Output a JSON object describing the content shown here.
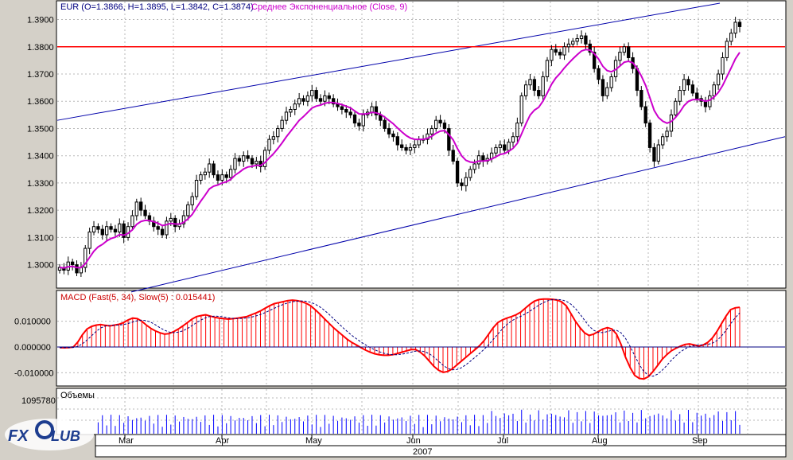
{
  "chart_data": [
    {
      "type": "candlestick",
      "title": "EUR (O=1.3866, H=1.3895, L=1.3842, C=1.3874)",
      "indicator_label": "Среднее Экспоненциальное (Close, 9)",
      "ylim": [
        1.292,
        1.396
      ],
      "y_ticks": [
        "1.3000",
        "1.3100",
        "1.3200",
        "1.3300",
        "1.3400",
        "1.3500",
        "1.3600",
        "1.3700",
        "1.3800",
        "1.3900"
      ],
      "resistance_level": 1.38,
      "channel_upper": {
        "start": 1.353,
        "end": 1.396
      },
      "channel_lower": {
        "start": 1.29,
        "end": 1.347
      },
      "closes": [
        1.299,
        1.298,
        1.301,
        1.3,
        1.297,
        1.299,
        1.306,
        1.312,
        1.314,
        1.313,
        1.311,
        1.314,
        1.313,
        1.312,
        1.315,
        1.31,
        1.314,
        1.318,
        1.323,
        1.32,
        1.318,
        1.316,
        1.314,
        1.313,
        1.311,
        1.316,
        1.317,
        1.314,
        1.315,
        1.318,
        1.322,
        1.325,
        1.331,
        1.333,
        1.334,
        1.337,
        1.333,
        1.331,
        1.333,
        1.332,
        1.335,
        1.339,
        1.338,
        1.34,
        1.339,
        1.337,
        1.338,
        1.336,
        1.342,
        1.346,
        1.347,
        1.35,
        1.353,
        1.356,
        1.357,
        1.359,
        1.361,
        1.36,
        1.362,
        1.364,
        1.361,
        1.36,
        1.362,
        1.361,
        1.359,
        1.358,
        1.357,
        1.356,
        1.355,
        1.352,
        1.351,
        1.355,
        1.356,
        1.358,
        1.355,
        1.353,
        1.35,
        1.348,
        1.347,
        1.344,
        1.343,
        1.342,
        1.343,
        1.344,
        1.346,
        1.346,
        1.348,
        1.35,
        1.353,
        1.352,
        1.35,
        1.342,
        1.338,
        1.33,
        1.329,
        1.332,
        1.335,
        1.337,
        1.34,
        1.338,
        1.339,
        1.341,
        1.343,
        1.344,
        1.342,
        1.345,
        1.347,
        1.352,
        1.362,
        1.366,
        1.368,
        1.364,
        1.362,
        1.369,
        1.375,
        1.379,
        1.378,
        1.377,
        1.38,
        1.381,
        1.382,
        1.383,
        1.384,
        1.381,
        1.378,
        1.372,
        1.368,
        1.362,
        1.365,
        1.369,
        1.375,
        1.378,
        1.38,
        1.376,
        1.372,
        1.364,
        1.358,
        1.352,
        1.343,
        1.338,
        1.344,
        1.347,
        1.349,
        1.355,
        1.36,
        1.364,
        1.368,
        1.366,
        1.363,
        1.361,
        1.36,
        1.358,
        1.362,
        1.366,
        1.37,
        1.376,
        1.382,
        1.385,
        1.389,
        1.3874
      ]
    },
    {
      "type": "histogram",
      "title": "MACD (Fast(5, 34), Slow(5) : 0.015441)",
      "ylim": [
        -0.0145,
        0.021
      ],
      "y_ticks": [
        "0.010000",
        "0.000000",
        "-0.010000"
      ],
      "histogram": [
        -0.0002,
        -0.0003,
        -0.0002,
        0.0,
        0.002,
        0.0048,
        0.007,
        0.008,
        0.0085,
        0.0087,
        0.0084,
        0.0082,
        0.0085,
        0.0088,
        0.0095,
        0.0105,
        0.0112,
        0.011,
        0.01,
        0.0085,
        0.0072,
        0.0062,
        0.0055,
        0.005,
        0.0052,
        0.006,
        0.007,
        0.0082,
        0.0095,
        0.0108,
        0.0118,
        0.0122,
        0.0125,
        0.012,
        0.0115,
        0.0112,
        0.011,
        0.0108,
        0.011,
        0.0112,
        0.0115,
        0.0118,
        0.0125,
        0.0132,
        0.014,
        0.015,
        0.016,
        0.0168,
        0.0172,
        0.0176,
        0.018,
        0.0182,
        0.018,
        0.0176,
        0.017,
        0.016,
        0.0145,
        0.0128,
        0.011,
        0.0092,
        0.0075,
        0.006,
        0.0045,
        0.003,
        0.0018,
        0.0008,
        -0.0002,
        -0.0012,
        -0.002,
        -0.0026,
        -0.003,
        -0.0032,
        -0.0032,
        -0.003,
        -0.0025,
        -0.002,
        -0.0015,
        -0.001,
        -0.001,
        -0.002,
        -0.0035,
        -0.0055,
        -0.0075,
        -0.009,
        -0.0098,
        -0.0095,
        -0.0085,
        -0.007,
        -0.0055,
        -0.004,
        -0.0025,
        -0.001,
        0.0005,
        0.0025,
        0.005,
        0.0075,
        0.0095,
        0.0105,
        0.0112,
        0.0118,
        0.0125,
        0.0135,
        0.015,
        0.0165,
        0.0178,
        0.0184,
        0.0186,
        0.0186,
        0.0185,
        0.0182,
        0.0175,
        0.016,
        0.013,
        0.01,
        0.0075,
        0.0055,
        0.0045,
        0.005,
        0.006,
        0.007,
        0.0075,
        0.007,
        0.005,
        0.001,
        -0.004,
        -0.008,
        -0.011,
        -0.0122,
        -0.0124,
        -0.0115,
        -0.0095,
        -0.0072,
        -0.0048,
        -0.003,
        -0.0015,
        -0.0005,
        0.0003,
        0.001,
        0.0012,
        0.0008,
        0.0004,
        0.0008,
        0.0018,
        0.0035,
        0.006,
        0.009,
        0.012,
        0.0145,
        0.0152,
        0.0154
      ],
      "signal_line": "dashed"
    },
    {
      "type": "bar",
      "title": "Объемы",
      "y_ticks": [
        "1095780"
      ],
      "ylim": [
        0,
        1095780
      ],
      "volume_max_observed": 1095780
    }
  ],
  "x_axis": {
    "months": [
      "Mar",
      "Apr",
      "May",
      "Jun",
      "Jul",
      "Aug",
      "Sep"
    ],
    "year": "2007"
  },
  "colors": {
    "background": "#ffffff",
    "frame": "#000000",
    "candle_up": "#ffffff",
    "candle_down": "#000000",
    "ema": "#cc00cc",
    "resistance": "#ff0000",
    "channel": "#0000aa",
    "macd_hist": "#ff0000",
    "macd_signal": "#000080",
    "volume": "#0000ff"
  },
  "logo_text": "FX CLUB"
}
